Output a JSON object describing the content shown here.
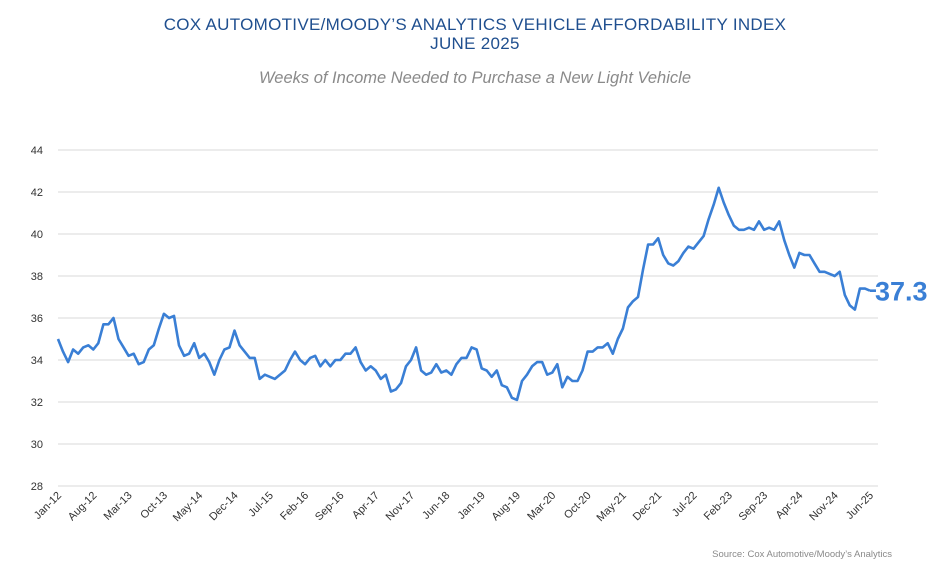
{
  "chart_data": {
    "type": "line",
    "title": "COX AUTOMOTIVE/MOODY’S ANALYTICS VEHICLE AFFORDABILITY INDEX",
    "title_line2": "JUNE 2025",
    "subtitle": "Weeks of Income Needed to Purchase a New Light Vehicle",
    "source": "Source: Cox Automotive/Moody’s Analytics",
    "xlabel": "",
    "ylabel": "",
    "ylim": [
      28,
      44
    ],
    "y_ticks": [
      "28",
      "30",
      "32",
      "34",
      "36",
      "38",
      "40",
      "42",
      "44"
    ],
    "x_tick_labels": [
      "Jan-12",
      "Aug-12",
      "Mar-13",
      "Oct-13",
      "May-14",
      "Dec-14",
      "Jul-15",
      "Feb-16",
      "Sep-16",
      "Apr-17",
      "Nov-17",
      "Jun-18",
      "Jan-19",
      "Aug-19",
      "Mar-20",
      "Oct-20",
      "May-21",
      "Dec-21",
      "Jul-22",
      "Feb-23",
      "Sep-23",
      "Apr-24",
      "Nov-24",
      "Jun-25"
    ],
    "x_tick_every_months": 7,
    "grid": true,
    "line_color": "#3a7fd5",
    "last_value_label": "37.3",
    "series": [
      {
        "x_range": [
          "Jan-12",
          "Jun-25"
        ],
        "frequency": "monthly",
        "values": [
          35.0,
          34.4,
          33.9,
          34.5,
          34.3,
          34.6,
          34.7,
          34.5,
          34.8,
          35.7,
          35.7,
          36.0,
          35.0,
          34.6,
          34.2,
          34.3,
          33.8,
          33.9,
          34.5,
          34.7,
          35.5,
          36.2,
          36.0,
          36.1,
          34.7,
          34.2,
          34.3,
          34.8,
          34.1,
          34.3,
          33.9,
          33.3,
          34.0,
          34.5,
          34.6,
          35.4,
          34.7,
          34.4,
          34.1,
          34.1,
          33.1,
          33.3,
          33.2,
          33.1,
          33.3,
          33.5,
          34.0,
          34.4,
          34.0,
          33.8,
          34.1,
          34.2,
          33.7,
          34.0,
          33.7,
          34.0,
          34.0,
          34.3,
          34.3,
          34.6,
          33.9,
          33.5,
          33.7,
          33.5,
          33.1,
          33.3,
          32.5,
          32.6,
          32.9,
          33.7,
          34.0,
          34.6,
          33.5,
          33.3,
          33.4,
          33.8,
          33.4,
          33.5,
          33.3,
          33.8,
          34.1,
          34.1,
          34.6,
          34.5,
          33.6,
          33.5,
          33.2,
          33.5,
          32.8,
          32.7,
          32.2,
          32.1,
          33.0,
          33.3,
          33.7,
          33.9,
          33.9,
          33.3,
          33.4,
          33.8,
          32.7,
          33.2,
          33.0,
          33.0,
          33.5,
          34.4,
          34.4,
          34.6,
          34.6,
          34.8,
          34.3,
          35.0,
          35.5,
          36.5,
          36.8,
          37.0,
          38.3,
          39.5,
          39.5,
          39.8,
          39.0,
          38.6,
          38.5,
          38.7,
          39.1,
          39.4,
          39.3,
          39.6,
          39.9,
          40.7,
          41.4,
          42.2,
          41.5,
          40.9,
          40.4,
          40.2,
          40.2,
          40.3,
          40.2,
          40.6,
          40.2,
          40.3,
          40.2,
          40.6,
          39.7,
          39.0,
          38.4,
          39.1,
          39.0,
          39.0,
          38.6,
          38.2,
          38.2,
          38.1,
          38.0,
          38.2,
          37.1,
          36.6,
          36.4,
          37.4,
          37.4,
          37.3
        ]
      }
    ]
  }
}
